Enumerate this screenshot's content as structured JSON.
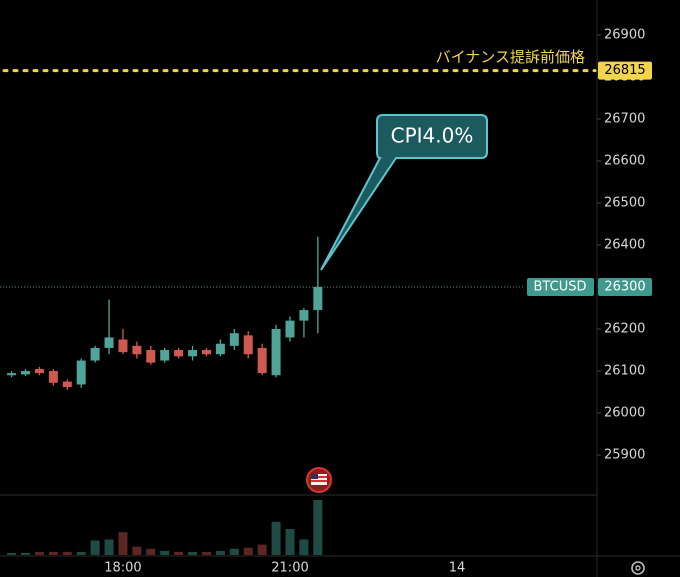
{
  "chart_data": {
    "type": "candlestick",
    "categories": [
      null,
      null,
      null,
      null,
      null,
      null,
      null,
      null,
      "18:00",
      null,
      null,
      null,
      null,
      null,
      null,
      null,
      null,
      null,
      null,
      null,
      "21:00",
      null,
      null,
      null,
      null,
      null,
      null,
      null,
      null,
      null,
      null,
      null,
      "14",
      null,
      null,
      null,
      null,
      null,
      null,
      null,
      null,
      null,
      null
    ],
    "open": [
      26090,
      26092,
      26105,
      26100,
      26075,
      26068,
      26125,
      26155,
      26175,
      26160,
      26150,
      26125,
      26150,
      26135,
      26150,
      26140,
      26160,
      26185,
      26155,
      26090,
      26180,
      26220,
      26245,
      null,
      null,
      null,
      null,
      null,
      null,
      null,
      null,
      null,
      null,
      null,
      null,
      null,
      null,
      null,
      null,
      null,
      null,
      null,
      null
    ],
    "high": [
      26100,
      26105,
      26110,
      26105,
      26080,
      26130,
      26160,
      26270,
      26200,
      26170,
      26160,
      26155,
      26155,
      26160,
      26155,
      26175,
      26200,
      26195,
      26165,
      26210,
      26230,
      26250,
      26420,
      null,
      null,
      null,
      null,
      null,
      null,
      null,
      null,
      null,
      null,
      null,
      null,
      null,
      null,
      null,
      null,
      null,
      null,
      null,
      null
    ],
    "low": [
      26085,
      26088,
      26090,
      26065,
      26055,
      26060,
      26120,
      26140,
      26140,
      26130,
      26115,
      26120,
      26130,
      26125,
      26135,
      26135,
      26150,
      26130,
      26090,
      26085,
      26170,
      26180,
      26190,
      null,
      null,
      null,
      null,
      null,
      null,
      null,
      null,
      null,
      null,
      null,
      null,
      null,
      null,
      null,
      null,
      null,
      null,
      null,
      null
    ],
    "close": [
      26095,
      26100,
      26095,
      26072,
      26062,
      26125,
      26155,
      26180,
      26145,
      26140,
      26120,
      26150,
      26135,
      26150,
      26140,
      26165,
      26190,
      26140,
      26095,
      26200,
      26220,
      26245,
      26300,
      null,
      null,
      null,
      null,
      null,
      null,
      null,
      null,
      null,
      null,
      null,
      null,
      null,
      null,
      null,
      null,
      null,
      null,
      null,
      null
    ],
    "volume": [
      2,
      2,
      3,
      3,
      3,
      3,
      14,
      15,
      22,
      8,
      6,
      4,
      3,
      3,
      3,
      4,
      6,
      7,
      10,
      32,
      25,
      15,
      53,
      null,
      null,
      null,
      null,
      null,
      null,
      null,
      null,
      null,
      null,
      null,
      null,
      null,
      null,
      null,
      null,
      null,
      null,
      null,
      null
    ],
    "up_color": "#4fa597",
    "down_color": "#d05a52",
    "volume_up_color": "#1f4b45",
    "volume_down_color": "#5c2623",
    "ylim": [
      25805,
      26983
    ],
    "yticks": [
      25900,
      26000,
      26100,
      26200,
      26300,
      26400,
      26500,
      26600,
      26700,
      26800,
      26900
    ],
    "reference_line": {
      "label": "バイナンス提訴前価格",
      "value": 26815,
      "color": "#f2d54b"
    },
    "price_line": {
      "label": "BTCUSD",
      "value": 26300,
      "color": "#3e9a8c"
    },
    "annotation": "CPI4.0%"
  }
}
